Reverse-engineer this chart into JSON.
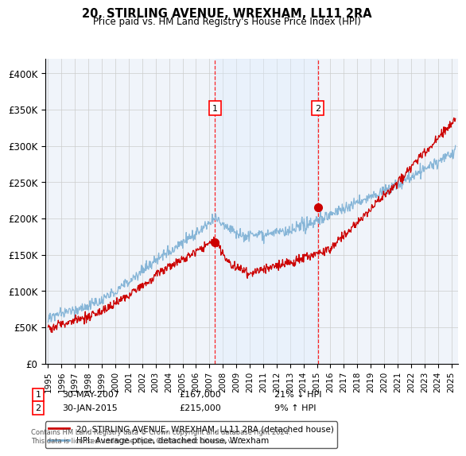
{
  "title": "20, STIRLING AVENUE, WREXHAM, LL11 2RA",
  "subtitle": "Price paid vs. HM Land Registry's House Price Index (HPI)",
  "ylabel_ticks": [
    "£0",
    "£50K",
    "£100K",
    "£150K",
    "£200K",
    "£250K",
    "£300K",
    "£350K",
    "£400K"
  ],
  "ytick_values": [
    0,
    50000,
    100000,
    150000,
    200000,
    250000,
    300000,
    350000,
    400000
  ],
  "ylim": [
    0,
    420000
  ],
  "xlim_start": 1994.8,
  "xlim_end": 2025.5,
  "hpi_color": "#7bafd4",
  "price_color": "#cc0000",
  "shade_color": "#ddeeff",
  "marker1_x": 2007.42,
  "marker1_y": 167000,
  "marker2_x": 2015.08,
  "marker2_y": 215000,
  "shade_x1": 2007.42,
  "shade_x2": 2015.08,
  "legend_line1": "20, STIRLING AVENUE, WREXHAM, LL11 2RA (detached house)",
  "legend_line2": "HPI: Average price, detached house, Wrexham",
  "annotation1_date": "30-MAY-2007",
  "annotation1_price": "£167,000",
  "annotation1_hpi": "21% ↓ HPI",
  "annotation2_date": "30-JAN-2015",
  "annotation2_price": "£215,000",
  "annotation2_hpi": "9% ↑ HPI",
  "footnote": "Contains HM Land Registry data © Crown copyright and database right 2024.\nThis data is licensed under the Open Government Licence v3.0.",
  "background_color": "#ffffff"
}
